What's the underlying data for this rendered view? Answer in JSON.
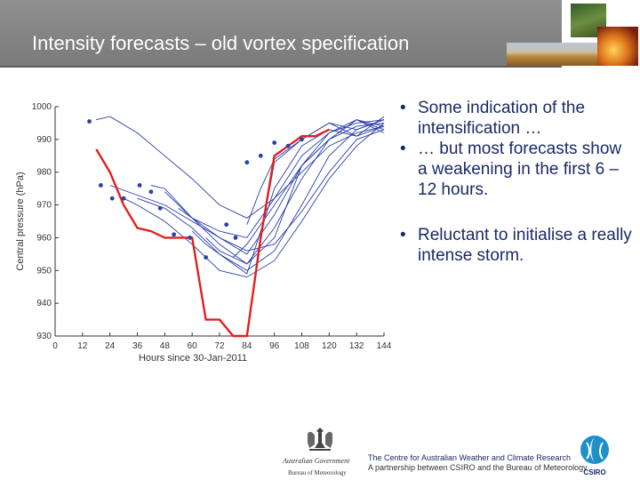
{
  "slide": {
    "title": "Intensity forecasts – old vortex specification",
    "bullets": [
      "Some indication of the intensification …",
      "… but most forecasts show a weakening in the first 6 – 12 hours.",
      "Reluctant to initialise a really intense storm."
    ],
    "bullet_char": "•",
    "footer": {
      "line1": "The Centre for Australian Weather and Climate Research",
      "line2": "A partnership between CSIRO and the Bureau of Meteorology",
      "gov_label": "Australian Government",
      "bom_label": "Bureau of Meteorology",
      "csiro_label": "CSIRO"
    }
  },
  "chart_data": {
    "type": "line",
    "xlabel": "Hours since 30-Jan-2011",
    "ylabel": "Central pressure (hPa)",
    "xlim": [
      0,
      144
    ],
    "ylim": [
      930,
      1000
    ],
    "x_ticks": [
      0,
      12,
      24,
      36,
      48,
      60,
      72,
      84,
      96,
      108,
      120,
      132,
      144
    ],
    "y_ticks": [
      930,
      940,
      950,
      960,
      970,
      980,
      990,
      1000
    ],
    "colors": {
      "observed": "#e02020",
      "forecast": "#2a3fa8",
      "axis": "#333333"
    },
    "observed": {
      "x": [
        18,
        24,
        30,
        36,
        42,
        48,
        60,
        66,
        72,
        78,
        84,
        90,
        96,
        102,
        108,
        114,
        120
      ],
      "y": [
        987,
        980,
        970,
        963,
        962,
        960,
        960,
        935,
        935,
        930,
        930,
        960,
        985,
        988,
        991,
        991,
        993
      ]
    },
    "forecasts": [
      {
        "x": [
          18,
          24,
          36,
          48,
          60,
          72,
          84,
          96,
          108,
          120,
          132,
          144
        ],
        "y": [
          996,
          997,
          992,
          985,
          978,
          970,
          966,
          972,
          980,
          988,
          992,
          994
        ]
      },
      {
        "x": [
          24,
          36,
          48,
          60,
          72,
          84,
          96,
          108,
          120,
          132,
          144
        ],
        "y": [
          976,
          973,
          970,
          965,
          960,
          956,
          958,
          968,
          980,
          990,
          993
        ]
      },
      {
        "x": [
          30,
          36,
          48,
          60,
          72,
          84,
          96,
          108,
          120,
          132,
          144
        ],
        "y": [
          972,
          970,
          965,
          958,
          950,
          948,
          953,
          965,
          978,
          988,
          995
        ]
      },
      {
        "x": [
          36,
          48,
          60,
          72,
          84,
          96,
          108,
          120,
          132,
          144
        ],
        "y": [
          972,
          969,
          963,
          955,
          950,
          956,
          970,
          985,
          993,
          996
        ]
      },
      {
        "x": [
          42,
          48,
          60,
          72,
          84,
          96,
          108,
          120,
          132,
          144
        ],
        "y": [
          976,
          975,
          966,
          958,
          952,
          963,
          978,
          990,
          996,
          994
        ]
      },
      {
        "x": [
          48,
          54,
          60,
          72,
          84,
          96,
          108,
          120,
          132,
          144
        ],
        "y": [
          974,
          970,
          966,
          960,
          955,
          967,
          982,
          992,
          995,
          996
        ]
      },
      {
        "x": [
          54,
          60,
          72,
          84,
          96,
          108,
          120,
          132,
          144
        ],
        "y": [
          969,
          966,
          962,
          960,
          972,
          985,
          992,
          996,
          993
        ]
      },
      {
        "x": [
          60,
          66,
          72,
          84,
          96,
          108,
          120,
          132,
          144
        ],
        "y": [
          962,
          958,
          955,
          949,
          975,
          988,
          993,
          991,
          994
        ]
      },
      {
        "x": [
          66,
          72,
          84,
          96,
          108,
          120,
          132,
          144
        ],
        "y": [
          960,
          956,
          952,
          960,
          982,
          990,
          994,
          995
        ]
      },
      {
        "x": [
          78,
          84,
          96,
          108,
          120,
          132,
          144
        ],
        "y": [
          954,
          958,
          970,
          982,
          990,
          996,
          992
        ]
      },
      {
        "x": [
          84,
          90,
          96,
          108,
          120,
          132,
          144
        ],
        "y": [
          964,
          975,
          984,
          990,
          995,
          993,
          996
        ]
      },
      {
        "x": [
          90,
          96,
          108,
          120,
          132,
          144
        ],
        "y": [
          960,
          983,
          990,
          995,
          991,
          997
        ]
      }
    ],
    "initial_points": {
      "x": [
        15,
        20,
        25,
        30,
        37,
        42,
        46,
        52,
        59,
        66,
        75,
        79,
        84,
        90,
        96,
        102,
        108
      ],
      "y": [
        995.5,
        976,
        972,
        972,
        976,
        974,
        969,
        961,
        960,
        954,
        964,
        960,
        983,
        985,
        989,
        988,
        990
      ]
    }
  }
}
